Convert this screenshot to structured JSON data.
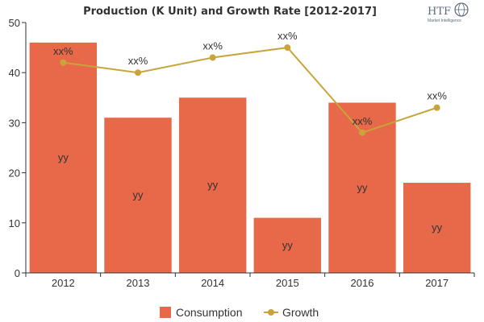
{
  "colors": {
    "bar": "#e8684a",
    "bar_stroke": "#ffffff",
    "line": "#c8a43a",
    "axis": "#333333",
    "text": "#333333"
  },
  "logo": {
    "name": "HTF",
    "sub": "Market Intelligence",
    "icon": "globe-icon"
  },
  "chart_data": {
    "type": "bar",
    "title": "Production (K Unit) and Growth Rate [2012-2017]",
    "categories": [
      "2012",
      "2013",
      "2014",
      "2015",
      "2016",
      "2017"
    ],
    "ylim": [
      0,
      50
    ],
    "yticks": [
      0,
      10,
      20,
      30,
      40,
      50
    ],
    "xlabel": "",
    "ylabel": "",
    "legend": "bottom",
    "series": [
      {
        "name": "Consumption",
        "type": "bar",
        "values": [
          46,
          31,
          35,
          11,
          34,
          18
        ],
        "labels": [
          "yy",
          "yy",
          "yy",
          "yy",
          "yy",
          "yy"
        ]
      },
      {
        "name": "Growth",
        "type": "line",
        "values": [
          42,
          40,
          43,
          45,
          28,
          33
        ],
        "labels": [
          "xx%",
          "xx%",
          "xx%",
          "xx%",
          "xx%",
          "xx%"
        ]
      }
    ]
  }
}
